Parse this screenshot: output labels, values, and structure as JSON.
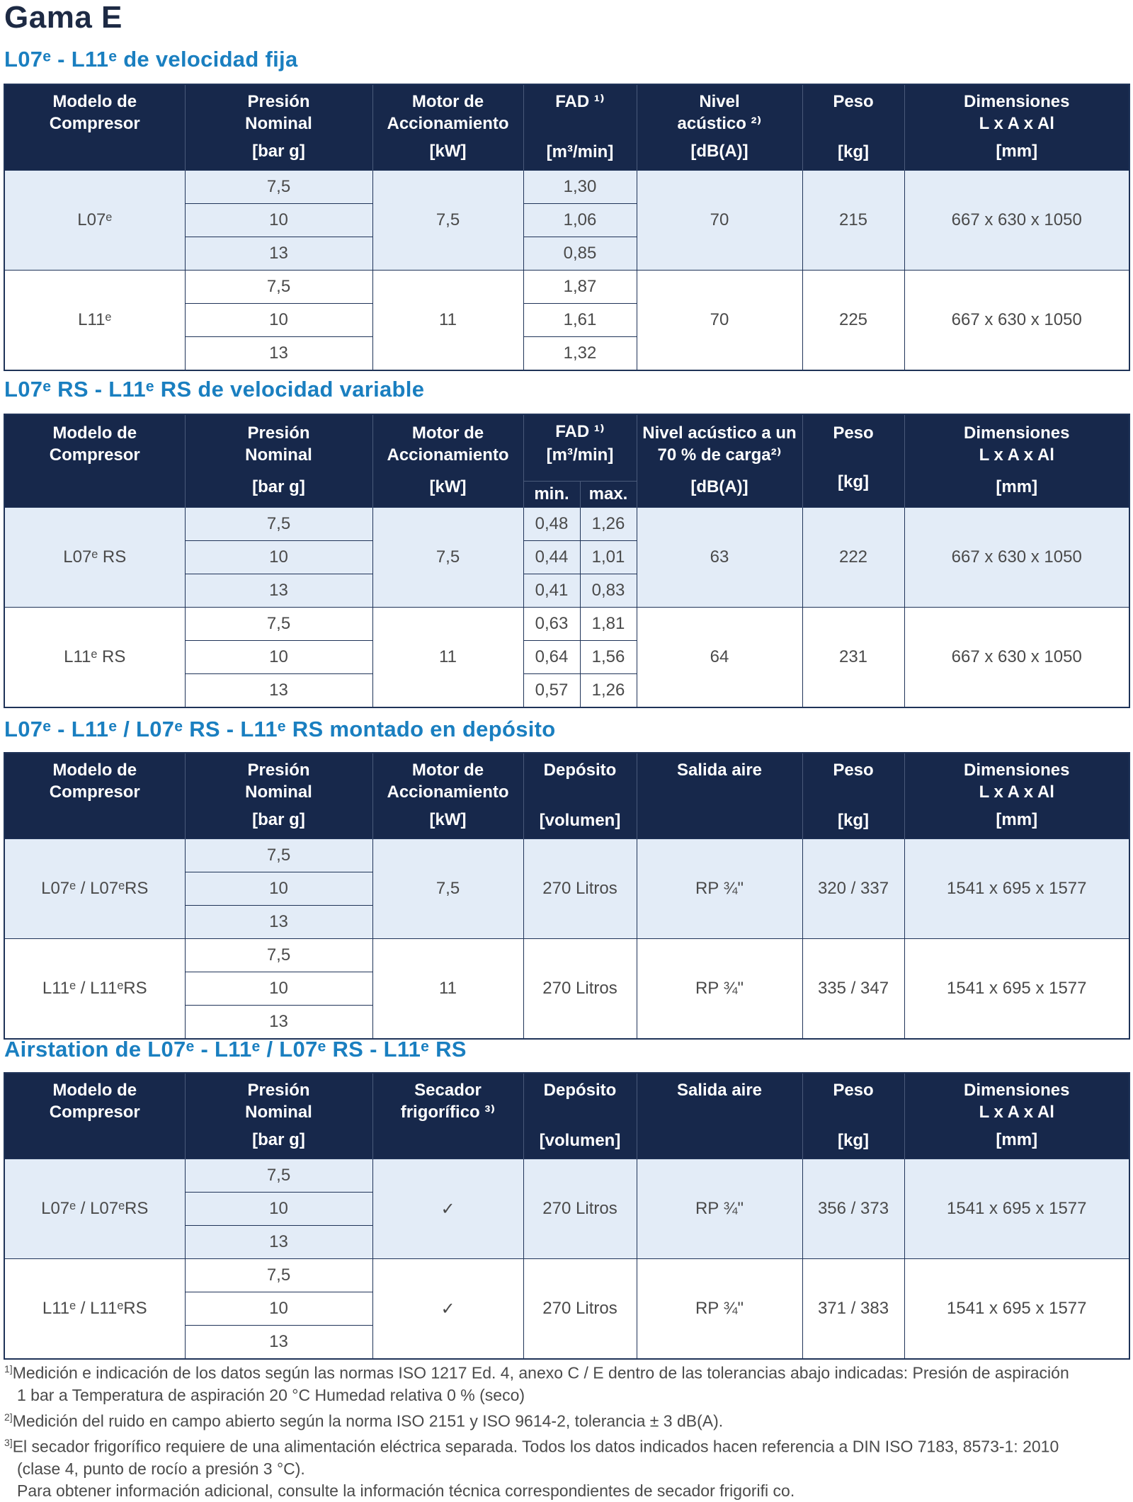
{
  "title": "Gama E",
  "sections": [
    {
      "title": "L07ᵉ - L11ᵉ de velocidad fija",
      "headers": {
        "modelo": [
          "Modelo de",
          "Compresor"
        ],
        "presion": [
          "Presión",
          "Nominal",
          "[bar g]"
        ],
        "motor": [
          "Motor de",
          "Accionamiento",
          "[kW]"
        ],
        "fad": [
          "FAD ¹⁾",
          "[m³/min]"
        ],
        "nivel": [
          "Nivel",
          "acústico ²⁾",
          "[dB(A)]"
        ],
        "peso": [
          "Peso",
          "[kg]"
        ],
        "dim": [
          "Dimensiones",
          "L x A x Al",
          "[mm]"
        ]
      },
      "rows": [
        {
          "modelo": "L07ᵉ",
          "presiones": [
            "7,5",
            "10",
            "13"
          ],
          "motor": "7,5",
          "fad": [
            "1,30",
            "1,06",
            "0,85"
          ],
          "nivel": "70",
          "peso": "215",
          "dim": "667 x 630 x 1050"
        },
        {
          "modelo": "L11ᵉ",
          "presiones": [
            "7,5",
            "10",
            "13"
          ],
          "motor": "11",
          "fad": [
            "1,87",
            "1,61",
            "1,32"
          ],
          "nivel": "70",
          "peso": "225",
          "dim": "667 x 630 x 1050"
        }
      ]
    },
    {
      "title": "L07ᵉ RS - L11ᵉ RS de velocidad variable",
      "headers": {
        "modelo": [
          "Modelo de",
          "Compresor"
        ],
        "presion": [
          "Presión",
          "Nominal",
          "[bar g]"
        ],
        "motor": [
          "Motor de",
          "Accionamiento",
          "[kW]"
        ],
        "fad": [
          "FAD ¹⁾",
          "[m³/min]"
        ],
        "fad_min": "min.",
        "fad_max": "max.",
        "nivel": [
          "Nivel acústico a un",
          "70 % de carga²⁾",
          "[dB(A)]"
        ],
        "peso": [
          "Peso",
          "[kg]"
        ],
        "dim": [
          "Dimensiones",
          "L x A x Al",
          "[mm]"
        ]
      },
      "rows": [
        {
          "modelo": "L07ᵉ RS",
          "presiones": [
            "7,5",
            "10",
            "13"
          ],
          "motor": "7,5",
          "fad_min": [
            "0,48",
            "0,44",
            "0,41"
          ],
          "fad_max": [
            "1,26",
            "1,01",
            "0,83"
          ],
          "nivel": "63",
          "peso": "222",
          "dim": "667 x 630 x 1050"
        },
        {
          "modelo": "L11ᵉ RS",
          "presiones": [
            "7,5",
            "10",
            "13"
          ],
          "motor": "11",
          "fad_min": [
            "0,63",
            "0,64",
            "0,57"
          ],
          "fad_max": [
            "1,81",
            "1,56",
            "1,26"
          ],
          "nivel": "64",
          "peso": "231",
          "dim": "667 x 630 x 1050"
        }
      ]
    },
    {
      "title": "L07ᵉ - L11ᵉ / L07ᵉ RS - L11ᵉ RS montado en depósito",
      "headers": {
        "modelo": [
          "Modelo de",
          "Compresor"
        ],
        "presion": [
          "Presión",
          "Nominal",
          "[bar g]"
        ],
        "motor": [
          "Motor de",
          "Accionamiento",
          "[kW]"
        ],
        "deposito": [
          "Depósito",
          "[volumen]"
        ],
        "salida": [
          "Salida aire"
        ],
        "peso": [
          "Peso",
          "[kg]"
        ],
        "dim": [
          "Dimensiones",
          "L x A x Al",
          "[mm]"
        ]
      },
      "rows": [
        {
          "modelo": "L07ᵉ / L07ᵉRS",
          "presiones": [
            "7,5",
            "10",
            "13"
          ],
          "motor": "7,5",
          "deposito": "270 Litros",
          "salida": "RP ¾\"",
          "peso": "320 / 337",
          "dim": "1541 x 695 x 1577"
        },
        {
          "modelo": "L11ᵉ / L11ᵉRS",
          "presiones": [
            "7,5",
            "10",
            "13"
          ],
          "motor": "11",
          "deposito": "270 Litros",
          "salida": "RP ¾\"",
          "peso": "335 / 347",
          "dim": "1541 x 695 x 1577"
        }
      ]
    },
    {
      "title": "Airstation de L07ᵉ - L11ᵉ / L07ᵉ RS - L11ᵉ RS",
      "headers": {
        "modelo": [
          "Modelo de",
          "Compresor"
        ],
        "presion": [
          "Presión",
          "Nominal",
          "[bar g]"
        ],
        "secador": [
          "Secador",
          "frigorífico ³⁾"
        ],
        "deposito": [
          "Depósito",
          "[volumen]"
        ],
        "salida": [
          "Salida aire"
        ],
        "peso": [
          "Peso",
          "[kg]"
        ],
        "dim": [
          "Dimensiones",
          "L x A x Al",
          "[mm]"
        ]
      },
      "rows": [
        {
          "modelo": "L07ᵉ / L07ᵉRS",
          "presiones": [
            "7,5",
            "10",
            "13"
          ],
          "secador": "✓",
          "deposito": "270 Litros",
          "salida": "RP ¾\"",
          "peso": "356 / 373",
          "dim": "1541 x 695 x 1577"
        },
        {
          "modelo": "L11ᵉ / L11ᵉRS",
          "presiones": [
            "7,5",
            "10",
            "13"
          ],
          "secador": "✓",
          "deposito": "270 Litros",
          "salida": "RP ¾\"",
          "peso": "371 / 383",
          "dim": "1541 x 695 x 1577"
        }
      ]
    }
  ],
  "footnotes": [
    {
      "mark": "1]",
      "lines": [
        "Medición e indicación de los datos según las normas ISO 1217 Ed. 4, anexo C / E dentro de las tolerancias abajo indicadas: Presión de aspiración",
        "1 bar a Temperatura de aspiración 20 °C Humedad relativa 0 % (seco)"
      ]
    },
    {
      "mark": "2]",
      "lines": [
        "Medición del ruido en campo abierto según la norma ISO 2151 y ISO 9614-2, tolerancia ± 3 dB(A)."
      ]
    },
    {
      "mark": "3]",
      "lines": [
        "El secador frigorífico requiere de una alimentación eléctrica separada. Todos los datos indicados hacen referencia a DIN ISO 7183, 8573-1: 2010",
        "(clase 4, punto de rocío a presión 3 °C).",
        "Para obtener información adicional, consulte la información técnica correspondientes de secador frigorifi co."
      ]
    }
  ],
  "colors": {
    "header_bg": "#17284b",
    "title_blue": "#1a7fc0",
    "row_tint": "#e3ecf7"
  }
}
